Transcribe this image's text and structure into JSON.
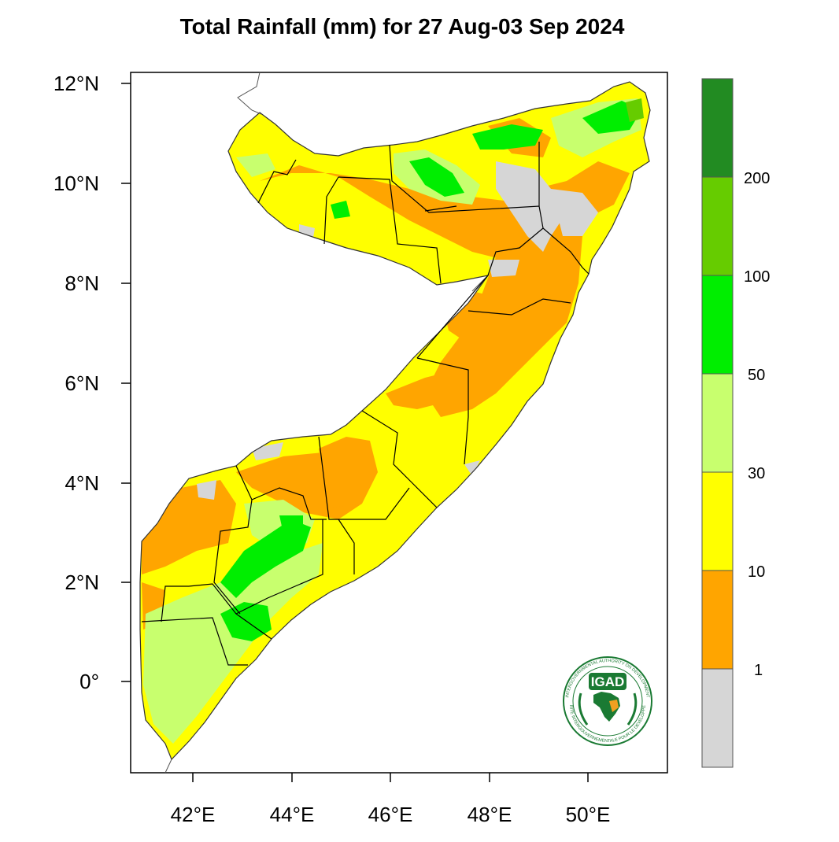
{
  "title": "Total Rainfall (mm) for 27 Aug-03 Sep 2024",
  "axes": {
    "x_ticks": [
      "42°E",
      "44°E",
      "46°E",
      "48°E",
      "50°E"
    ],
    "y_ticks": [
      "12°N",
      "10°N",
      "8°N",
      "6°N",
      "4°N",
      "2°N",
      "0°"
    ]
  },
  "legend": {
    "labels": [
      "1",
      "10",
      "30",
      "50",
      "100",
      "200"
    ],
    "colors": [
      "#d6d6d6",
      "#ffa500",
      "#ffff00",
      "#c8ff6e",
      "#00ee00",
      "#66cc00",
      "#228b22"
    ]
  },
  "logo": {
    "name": "IGAD",
    "ring_top": "INTERGOVERNMENTAL AUTHORITY ON DEVELOPMENT",
    "ring_bottom": "AUTORITE INTERGOUVERNEMENTALE POUR LE DEVELOPPEMENT"
  }
}
